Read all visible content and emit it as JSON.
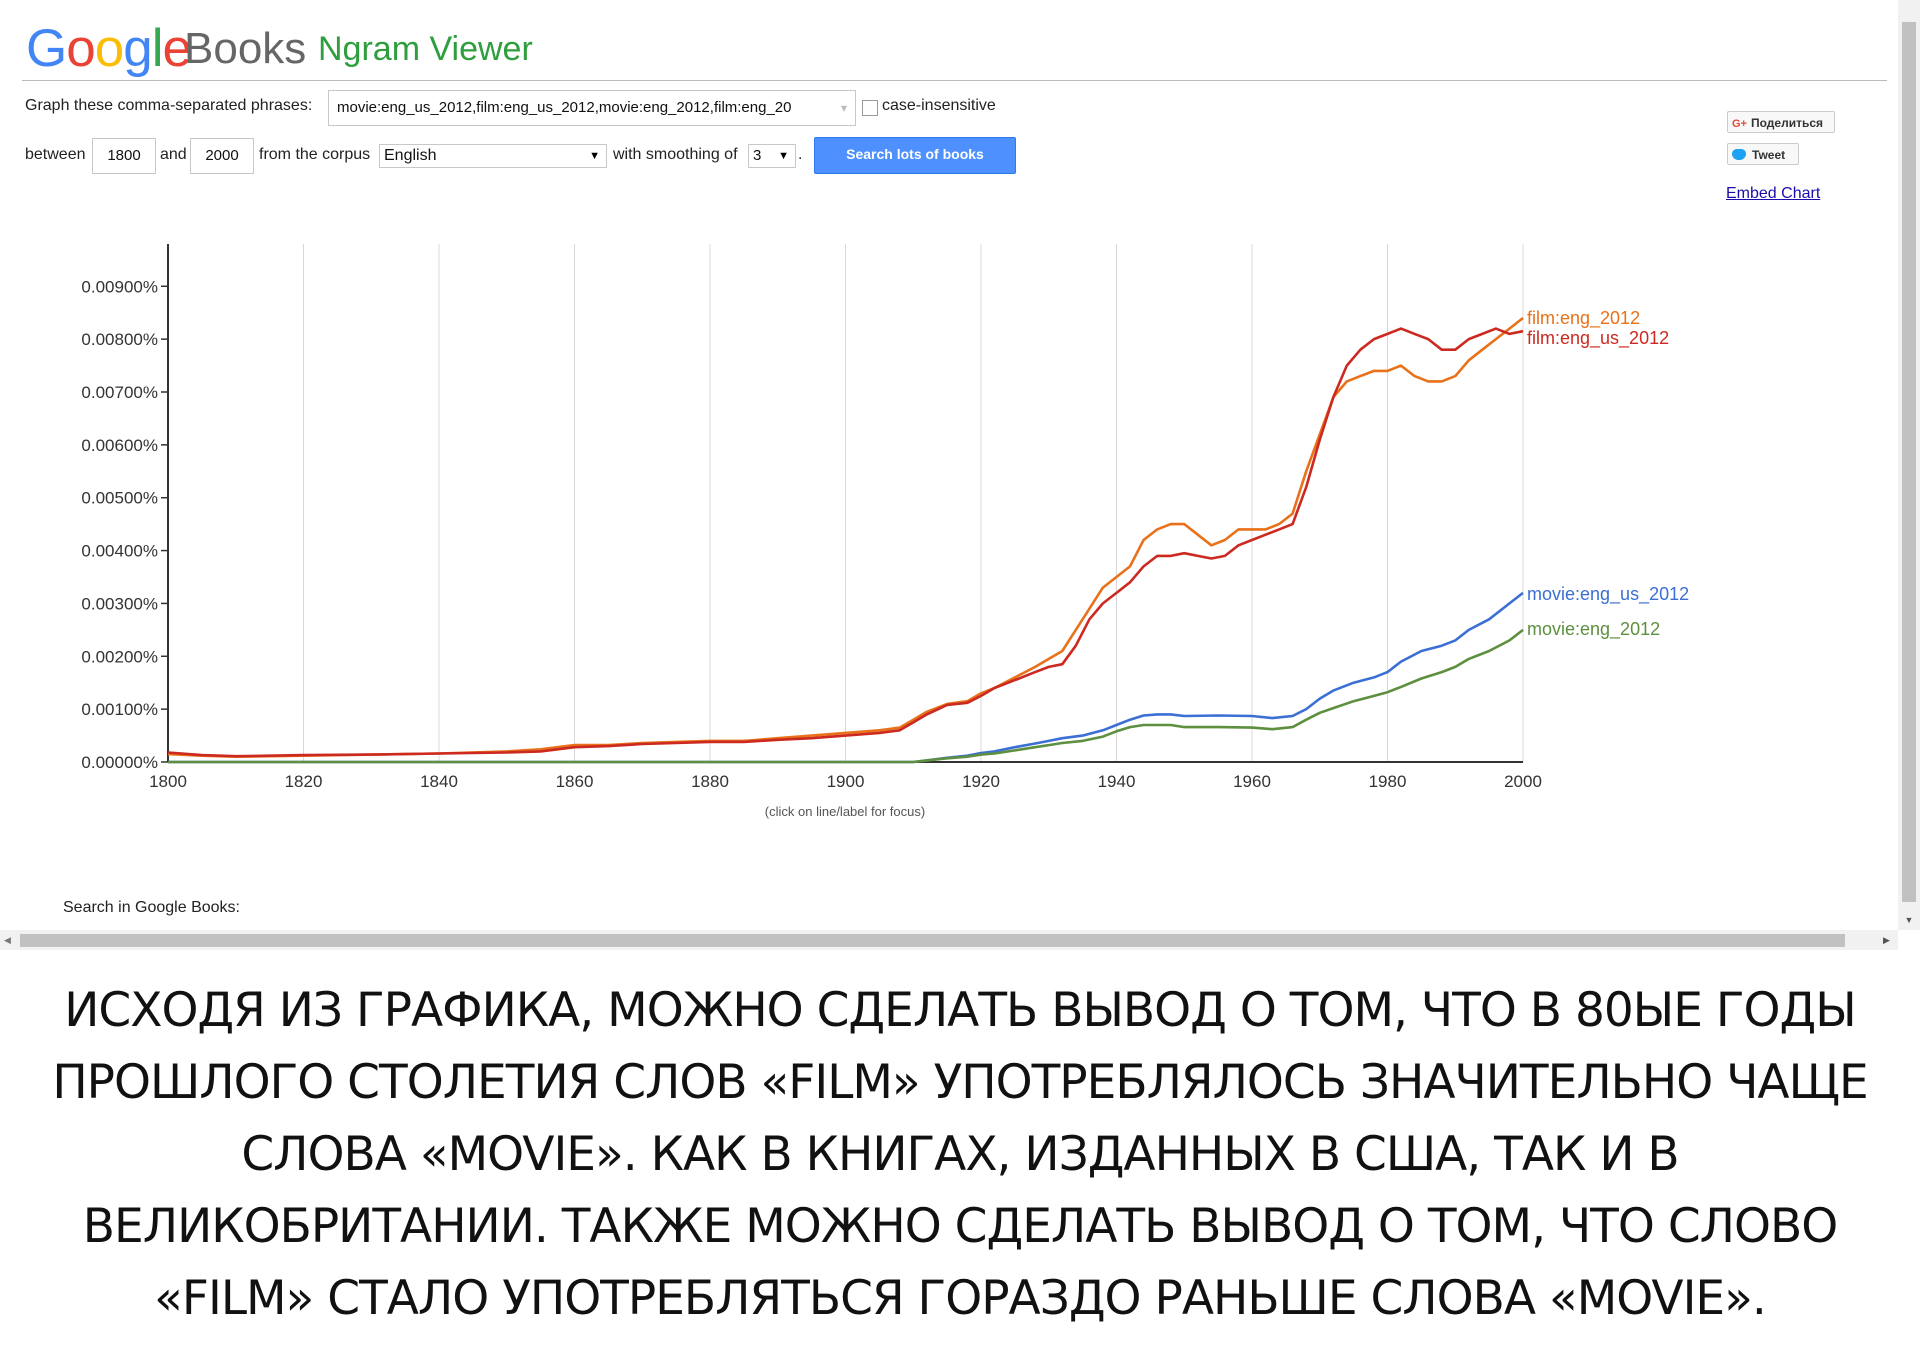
{
  "header": {
    "logo_google": "Google",
    "logo_books": "Books",
    "title": "Ngram Viewer"
  },
  "form": {
    "phrases_label": "Graph these comma-separated phrases:",
    "phrases_value": "movie:eng_us_2012,film:eng_us_2012,movie:eng_2012,film:eng_20",
    "case_insensitive_label": "case-insensitive",
    "between_label": "between",
    "year_start": "1800",
    "and_label": "and",
    "year_end": "2000",
    "corpus_label": "from the corpus",
    "corpus_value": "English",
    "smoothing_label": "with smoothing of",
    "smoothing_value": "3",
    "period": ".",
    "search_button": "Search lots of books"
  },
  "share": {
    "gplus_icon": "G+",
    "gplus_label": "Поделиться",
    "tweet_label": "Tweet",
    "embed_chart": "Embed Chart"
  },
  "focus_hint": "(click on line/label for focus)",
  "search_in_books": "Search in Google Books:",
  "caption": [
    "ИСХОДЯ ИЗ ГРАФИКА, МОЖНО СДЕЛАТЬ ВЫВОД О ТОМ, ЧТО В 80ЫЕ ГОДЫ",
    "ПРОШЛОГО СТОЛЕТИЯ СЛОВ «FILM» УПОТРЕБЛЯЛОСЬ ЗНАЧИТЕЛЬНО ЧАЩЕ",
    "СЛОВА «MOVIE». КАК В КНИГАХ, ИЗДАННЫХ В США, ТАК И В",
    "ВЕЛИКОБРИТАНИИ. ТАКЖЕ МОЖНО СДЕЛАТЬ ВЫВОД О ТОМ, ЧТО СЛОВО",
    "«FILM» СТАЛО УПОТРЕБЛЯТЬСЯ ГОРАЗДО РАНЬШЕ СЛОВА «MOVIE»."
  ],
  "chart_data": {
    "type": "line",
    "xlim": [
      1800,
      2000
    ],
    "ylim": [
      0,
      0.0098
    ],
    "x_ticks": [
      1800,
      1820,
      1840,
      1860,
      1880,
      1900,
      1920,
      1940,
      1960,
      1980,
      2000
    ],
    "y_ticks": [
      0,
      0.001,
      0.002,
      0.003,
      0.004,
      0.005,
      0.006,
      0.007,
      0.008,
      0.009
    ],
    "y_tick_labels": [
      "0.00000%",
      "0.00100%",
      "0.00200%",
      "0.00300%",
      "0.00400%",
      "0.00500%",
      "0.00600%",
      "0.00700%",
      "0.00800%",
      "0.00900%"
    ],
    "x_tick_labels": [
      "1800",
      "1820",
      "1840",
      "1860",
      "1880",
      "1900",
      "1920",
      "1940",
      "1960",
      "1980",
      "2000"
    ],
    "grid": true,
    "series": [
      {
        "name": "film:eng_2012",
        "color": "#e8711a",
        "points": [
          [
            1800,
            0.00015
          ],
          [
            1805,
            0.00012
          ],
          [
            1810,
            0.0001
          ],
          [
            1820,
            0.00012
          ],
          [
            1830,
            0.00014
          ],
          [
            1840,
            0.00016
          ],
          [
            1850,
            0.0002
          ],
          [
            1855,
            0.00024
          ],
          [
            1860,
            0.00032
          ],
          [
            1865,
            0.00032
          ],
          [
            1870,
            0.00036
          ],
          [
            1875,
            0.00038
          ],
          [
            1880,
            0.0004
          ],
          [
            1885,
            0.0004
          ],
          [
            1890,
            0.00045
          ],
          [
            1895,
            0.0005
          ],
          [
            1900,
            0.00055
          ],
          [
            1905,
            0.0006
          ],
          [
            1908,
            0.00065
          ],
          [
            1910,
            0.0008
          ],
          [
            1912,
            0.00095
          ],
          [
            1915,
            0.0011
          ],
          [
            1918,
            0.00115
          ],
          [
            1920,
            0.0013
          ],
          [
            1922,
            0.0014
          ],
          [
            1925,
            0.0016
          ],
          [
            1928,
            0.0018
          ],
          [
            1930,
            0.00195
          ],
          [
            1932,
            0.0021
          ],
          [
            1934,
            0.0025
          ],
          [
            1936,
            0.0029
          ],
          [
            1938,
            0.0033
          ],
          [
            1940,
            0.0035
          ],
          [
            1942,
            0.0037
          ],
          [
            1944,
            0.0042
          ],
          [
            1946,
            0.0044
          ],
          [
            1948,
            0.0045
          ],
          [
            1950,
            0.0045
          ],
          [
            1952,
            0.0043
          ],
          [
            1954,
            0.0041
          ],
          [
            1956,
            0.0042
          ],
          [
            1958,
            0.0044
          ],
          [
            1960,
            0.0044
          ],
          [
            1962,
            0.0044
          ],
          [
            1964,
            0.0045
          ],
          [
            1966,
            0.0047
          ],
          [
            1968,
            0.0055
          ],
          [
            1970,
            0.0062
          ],
          [
            1972,
            0.0069
          ],
          [
            1974,
            0.0072
          ],
          [
            1976,
            0.0073
          ],
          [
            1978,
            0.0074
          ],
          [
            1980,
            0.0074
          ],
          [
            1982,
            0.0075
          ],
          [
            1984,
            0.0073
          ],
          [
            1986,
            0.0072
          ],
          [
            1988,
            0.0072
          ],
          [
            1990,
            0.0073
          ],
          [
            1992,
            0.0076
          ],
          [
            1994,
            0.0078
          ],
          [
            1996,
            0.008
          ],
          [
            1998,
            0.0082
          ],
          [
            2000,
            0.0084
          ]
        ]
      },
      {
        "name": "film:eng_us_2012",
        "color": "#cc2a20",
        "points": [
          [
            1800,
            0.00018
          ],
          [
            1805,
            0.00013
          ],
          [
            1810,
            0.00011
          ],
          [
            1820,
            0.00013
          ],
          [
            1830,
            0.00014
          ],
          [
            1840,
            0.00016
          ],
          [
            1850,
            0.00018
          ],
          [
            1855,
            0.0002
          ],
          [
            1860,
            0.00028
          ],
          [
            1865,
            0.0003
          ],
          [
            1870,
            0.00034
          ],
          [
            1875,
            0.00036
          ],
          [
            1880,
            0.00038
          ],
          [
            1885,
            0.00038
          ],
          [
            1890,
            0.00042
          ],
          [
            1895,
            0.00045
          ],
          [
            1900,
            0.0005
          ],
          [
            1905,
            0.00055
          ],
          [
            1908,
            0.0006
          ],
          [
            1910,
            0.00075
          ],
          [
            1912,
            0.0009
          ],
          [
            1915,
            0.00108
          ],
          [
            1918,
            0.00112
          ],
          [
            1920,
            0.00125
          ],
          [
            1922,
            0.0014
          ],
          [
            1925,
            0.00155
          ],
          [
            1928,
            0.0017
          ],
          [
            1930,
            0.0018
          ],
          [
            1932,
            0.00185
          ],
          [
            1934,
            0.0022
          ],
          [
            1936,
            0.0027
          ],
          [
            1938,
            0.003
          ],
          [
            1940,
            0.0032
          ],
          [
            1942,
            0.0034
          ],
          [
            1944,
            0.0037
          ],
          [
            1946,
            0.0039
          ],
          [
            1948,
            0.0039
          ],
          [
            1950,
            0.00395
          ],
          [
            1952,
            0.0039
          ],
          [
            1954,
            0.00385
          ],
          [
            1956,
            0.0039
          ],
          [
            1958,
            0.0041
          ],
          [
            1960,
            0.0042
          ],
          [
            1962,
            0.0043
          ],
          [
            1964,
            0.0044
          ],
          [
            1966,
            0.0045
          ],
          [
            1968,
            0.0052
          ],
          [
            1970,
            0.0061
          ],
          [
            1972,
            0.0069
          ],
          [
            1974,
            0.0075
          ],
          [
            1976,
            0.0078
          ],
          [
            1978,
            0.008
          ],
          [
            1980,
            0.0081
          ],
          [
            1982,
            0.0082
          ],
          [
            1984,
            0.0081
          ],
          [
            1986,
            0.008
          ],
          [
            1988,
            0.0078
          ],
          [
            1990,
            0.0078
          ],
          [
            1992,
            0.008
          ],
          [
            1994,
            0.0081
          ],
          [
            1996,
            0.0082
          ],
          [
            1998,
            0.0081
          ],
          [
            2000,
            0.00815
          ]
        ]
      },
      {
        "name": "movie:eng_us_2012",
        "color": "#3b6fd4",
        "points": [
          [
            1800,
            0.0
          ],
          [
            1900,
            0.0
          ],
          [
            1910,
            0.0
          ],
          [
            1912,
            3e-05
          ],
          [
            1915,
            8e-05
          ],
          [
            1918,
            0.00012
          ],
          [
            1920,
            0.00017
          ],
          [
            1922,
            0.0002
          ],
          [
            1925,
            0.00028
          ],
          [
            1928,
            0.00035
          ],
          [
            1930,
            0.0004
          ],
          [
            1932,
            0.00045
          ],
          [
            1935,
            0.0005
          ],
          [
            1938,
            0.0006
          ],
          [
            1940,
            0.0007
          ],
          [
            1942,
            0.0008
          ],
          [
            1944,
            0.00088
          ],
          [
            1946,
            0.0009
          ],
          [
            1948,
            0.0009
          ],
          [
            1950,
            0.00087
          ],
          [
            1955,
            0.00088
          ],
          [
            1960,
            0.00087
          ],
          [
            1963,
            0.00083
          ],
          [
            1966,
            0.00087
          ],
          [
            1968,
            0.001
          ],
          [
            1970,
            0.0012
          ],
          [
            1972,
            0.00135
          ],
          [
            1975,
            0.0015
          ],
          [
            1978,
            0.0016
          ],
          [
            1980,
            0.0017
          ],
          [
            1982,
            0.0019
          ],
          [
            1985,
            0.0021
          ],
          [
            1988,
            0.0022
          ],
          [
            1990,
            0.0023
          ],
          [
            1992,
            0.0025
          ],
          [
            1995,
            0.0027
          ],
          [
            1998,
            0.003
          ],
          [
            2000,
            0.0032
          ]
        ]
      },
      {
        "name": "movie:eng_2012",
        "color": "#5d8f3e",
        "points": [
          [
            1800,
            0.0
          ],
          [
            1900,
            0.0
          ],
          [
            1910,
            0.0
          ],
          [
            1912,
            3e-05
          ],
          [
            1915,
            7e-05
          ],
          [
            1918,
            0.0001
          ],
          [
            1920,
            0.00014
          ],
          [
            1922,
            0.00016
          ],
          [
            1925,
            0.00022
          ],
          [
            1928,
            0.00028
          ],
          [
            1930,
            0.00032
          ],
          [
            1932,
            0.00036
          ],
          [
            1935,
            0.0004
          ],
          [
            1938,
            0.00048
          ],
          [
            1940,
            0.00058
          ],
          [
            1942,
            0.00066
          ],
          [
            1944,
            0.0007
          ],
          [
            1946,
            0.0007
          ],
          [
            1948,
            0.0007
          ],
          [
            1950,
            0.00066
          ],
          [
            1955,
            0.00066
          ],
          [
            1960,
            0.00065
          ],
          [
            1963,
            0.00062
          ],
          [
            1966,
            0.00066
          ],
          [
            1968,
            0.0008
          ],
          [
            1970,
            0.00093
          ],
          [
            1972,
            0.00102
          ],
          [
            1975,
            0.00115
          ],
          [
            1978,
            0.00125
          ],
          [
            1980,
            0.00132
          ],
          [
            1982,
            0.00142
          ],
          [
            1985,
            0.00158
          ],
          [
            1988,
            0.0017
          ],
          [
            1990,
            0.0018
          ],
          [
            1992,
            0.00195
          ],
          [
            1995,
            0.0021
          ],
          [
            1998,
            0.0023
          ],
          [
            2000,
            0.0025
          ]
        ]
      }
    ],
    "line_labels": [
      {
        "series": "film:eng_2012",
        "text": "film:eng_2012"
      },
      {
        "series": "film:eng_us_2012",
        "text": "film:eng_us_2012"
      },
      {
        "series": "movie:eng_us_2012",
        "text": "movie:eng_us_2012"
      },
      {
        "series": "movie:eng_2012",
        "text": "movie:eng_2012"
      }
    ]
  }
}
